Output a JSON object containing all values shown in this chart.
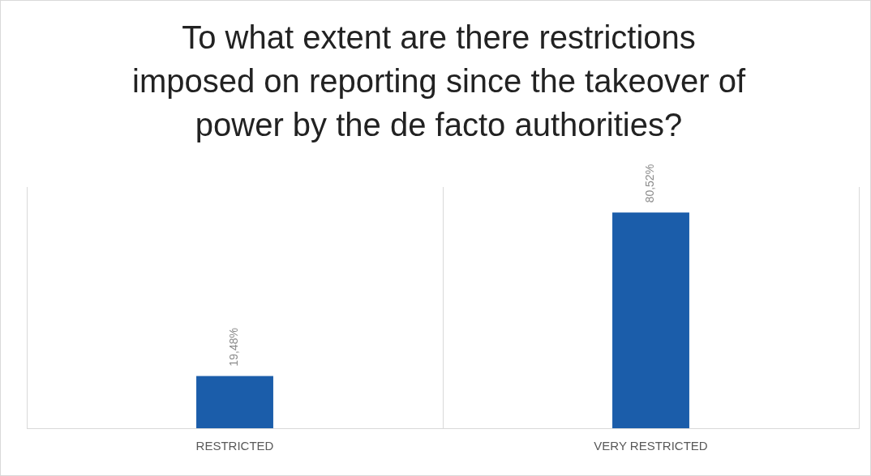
{
  "chart_data": {
    "type": "bar",
    "title": "To what extent are there restrictions imposed on reporting since the takeover of power by the de facto authorities?",
    "categories": [
      "RESTRICTED",
      "VERY RESTRICTED"
    ],
    "values": [
      19.48,
      80.52
    ],
    "value_labels": [
      "19,48%",
      "80,52%"
    ],
    "color": "#1b5daa",
    "grid": "x",
    "legend": false
  }
}
